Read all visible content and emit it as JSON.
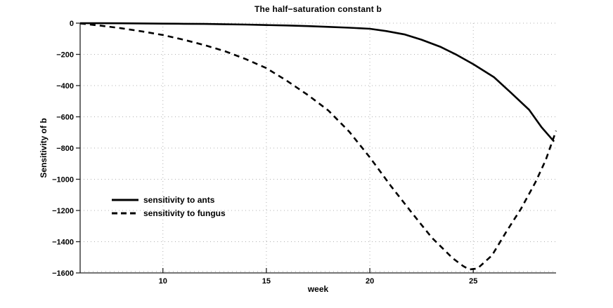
{
  "figure": {
    "background": "#ffffff"
  },
  "chart_data": {
    "type": "line",
    "title": "The half−saturation constant b",
    "xlabel": "week",
    "ylabel": "Sensitivity of b",
    "xlim": [
      6,
      29
    ],
    "ylim": [
      -1600,
      0
    ],
    "xticks": [
      10,
      15,
      20,
      25
    ],
    "xtick_labels": [
      "10",
      "15",
      "20",
      "25"
    ],
    "yticks": [
      0,
      -200,
      -400,
      -600,
      -800,
      -1000,
      -1200,
      -1400,
      -1600
    ],
    "ytick_labels": [
      "0",
      "−200",
      "−400",
      "−600",
      "−800",
      "−1000",
      "−1200",
      "−1400",
      "−1600"
    ],
    "grid": true,
    "grid_style": "dotted",
    "grid_color": "#b0b0b0",
    "axis_color": "#222222",
    "legend_position": "inside-left-middle",
    "legend_box": false,
    "series": [
      {
        "name": "sensitivity to ants",
        "line_style": "solid",
        "color": "#000000",
        "line_width": 2.6,
        "points": [
          [
            6,
            0
          ],
          [
            7,
            -0.5
          ],
          [
            8,
            -1
          ],
          [
            9,
            -2
          ],
          [
            10,
            -3
          ],
          [
            11,
            -4
          ],
          [
            12,
            -5
          ],
          [
            13,
            -7
          ],
          [
            14,
            -9
          ],
          [
            15,
            -12
          ],
          [
            16,
            -15
          ],
          [
            17,
            -19
          ],
          [
            18,
            -24
          ],
          [
            19,
            -29
          ],
          [
            20,
            -36
          ],
          [
            20.8,
            -51
          ],
          [
            21.7,
            -73
          ],
          [
            22.5,
            -106
          ],
          [
            23.4,
            -151
          ],
          [
            24.2,
            -203
          ],
          [
            25,
            -263
          ],
          [
            26,
            -346
          ],
          [
            26.8,
            -443
          ],
          [
            27.7,
            -555
          ],
          [
            28.3,
            -667
          ],
          [
            28.9,
            -758
          ]
        ]
      },
      {
        "name": "sensitivity to fungus",
        "line_style": "dashed",
        "color": "#000000",
        "line_width": 2.6,
        "points": [
          [
            6,
            -2
          ],
          [
            7,
            -16
          ],
          [
            8,
            -33
          ],
          [
            9,
            -53
          ],
          [
            10,
            -76
          ],
          [
            11,
            -106
          ],
          [
            12,
            -140
          ],
          [
            13,
            -180
          ],
          [
            14,
            -230
          ],
          [
            15,
            -288
          ],
          [
            16,
            -370
          ],
          [
            17,
            -460
          ],
          [
            18,
            -560
          ],
          [
            19,
            -695
          ],
          [
            20,
            -860
          ],
          [
            21,
            -1040
          ],
          [
            22,
            -1210
          ],
          [
            23,
            -1375
          ],
          [
            24,
            -1505
          ],
          [
            24.5,
            -1555
          ],
          [
            24.8,
            -1578
          ],
          [
            25.2,
            -1572
          ],
          [
            25.9,
            -1488
          ],
          [
            26.6,
            -1335
          ],
          [
            27.3,
            -1190
          ],
          [
            28,
            -1020
          ],
          [
            28.5,
            -877
          ],
          [
            29,
            -690
          ]
        ]
      }
    ]
  }
}
